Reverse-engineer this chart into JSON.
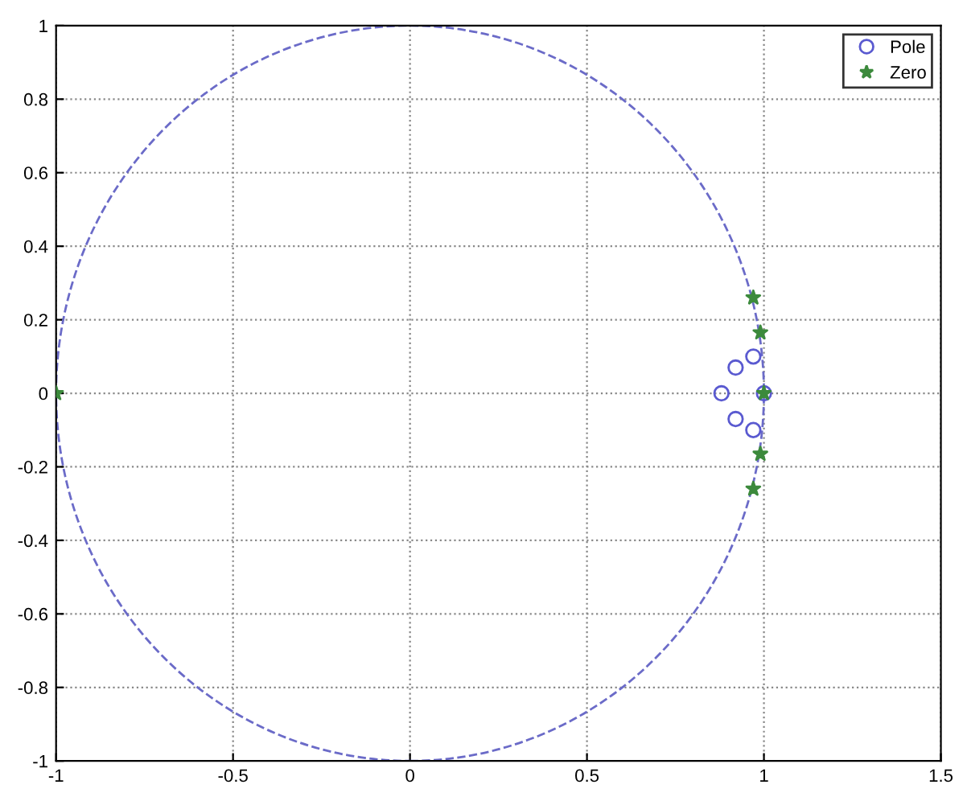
{
  "chart_data": {
    "type": "scatter",
    "xlim": [
      -1,
      1.5
    ],
    "ylim": [
      -1,
      1
    ],
    "xticks": [
      -1,
      -0.5,
      0,
      0.5,
      1,
      1.5
    ],
    "yticks": [
      -1,
      -0.8,
      -0.6,
      -0.4,
      -0.2,
      0,
      0.2,
      0.4,
      0.6,
      0.8,
      1
    ],
    "grid": true,
    "legend": "top right",
    "series": [
      {
        "name": "Pole",
        "marker": "circle",
        "color": "#5a5ad0",
        "x": [
          0.88,
          0.92,
          0.92,
          0.97,
          0.97,
          1
        ],
        "values": [
          0,
          0.07,
          -0.07,
          0.1,
          -0.1,
          0
        ]
      },
      {
        "name": "Zero",
        "marker": "star",
        "color": "#3c8a3c",
        "x": [
          -1,
          0.97,
          0.99,
          0.99,
          0.97,
          1
        ],
        "values": [
          0,
          0.26,
          0.165,
          -0.165,
          -0.26,
          0
        ]
      }
    ]
  }
}
